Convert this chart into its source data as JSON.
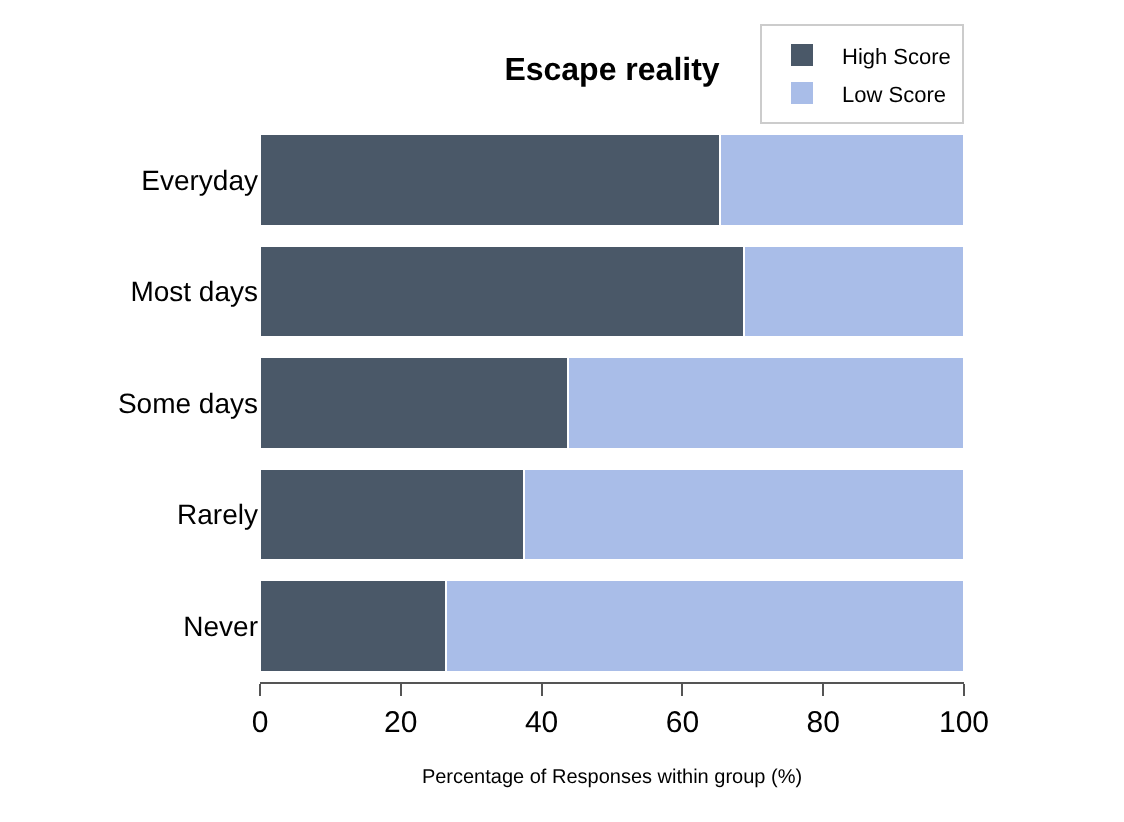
{
  "chart_data": {
    "type": "bar",
    "orientation": "horizontal",
    "stacked": true,
    "title": "Escape reality",
    "xlabel": "Percentage of Responses within group (%)",
    "categories": [
      "Everyday",
      "Most days",
      "Some days",
      "Rarely",
      "Never"
    ],
    "series": [
      {
        "name": "High Score",
        "color": "#4a5868",
        "values": [
          65.4,
          68.7,
          43.7,
          37.5,
          26.4
        ]
      },
      {
        "name": "Low Score",
        "color": "#a9bde8",
        "values": [
          34.6,
          31.3,
          56.3,
          62.5,
          73.6
        ]
      }
    ],
    "xlim": [
      0,
      100
    ],
    "xticks": [
      0,
      20,
      40,
      60,
      80,
      100
    ],
    "legend": "top right"
  }
}
